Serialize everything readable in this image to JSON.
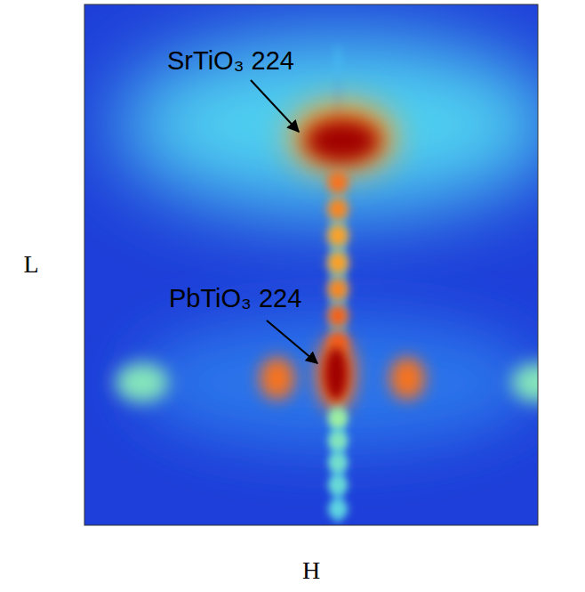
{
  "chart_data": {
    "type": "heatmap",
    "x_label": "H",
    "y_label": "L",
    "xlim": [
      0,
      100
    ],
    "ylim": [
      0,
      100
    ],
    "tick_labels": false,
    "zlim": [
      0,
      1
    ],
    "spots": [
      {
        "h": 55.9,
        "l": 76.9,
        "width": 98,
        "height": 34.2,
        "intensity": 0.35
      },
      {
        "h": 55.9,
        "l": 27.4,
        "width": 90,
        "height": 25.6,
        "intensity": 0.15
      },
      {
        "h": 55.9,
        "l": 46.2,
        "width": 3.5,
        "height": 92.3,
        "intensity": 0.3
      },
      {
        "h": 56.9,
        "l": 74.4,
        "width": 23.5,
        "height": 13.7,
        "intensity": 0.75
      },
      {
        "h": 56.9,
        "l": 73.8,
        "width": 16.7,
        "height": 8.5,
        "intensity": 1.0
      },
      {
        "h": 55.9,
        "l": 65.8,
        "width": 4.7,
        "height": 4.4,
        "intensity": 0.8
      },
      {
        "h": 55.9,
        "l": 60.7,
        "width": 4.7,
        "height": 4.4,
        "intensity": 0.78
      },
      {
        "h": 55.9,
        "l": 55.6,
        "width": 4.7,
        "height": 4.4,
        "intensity": 0.75
      },
      {
        "h": 55.9,
        "l": 50.4,
        "width": 4.7,
        "height": 4.4,
        "intensity": 0.75
      },
      {
        "h": 55.9,
        "l": 45.3,
        "width": 4.7,
        "height": 4.4,
        "intensity": 0.78
      },
      {
        "h": 55.9,
        "l": 40.2,
        "width": 4.7,
        "height": 4.4,
        "intensity": 0.82
      },
      {
        "h": 55.9,
        "l": 35.0,
        "width": 4.7,
        "height": 4.4,
        "intensity": 0.85
      },
      {
        "h": 55.5,
        "l": 29.1,
        "width": 8.8,
        "height": 14.5,
        "intensity": 0.8
      },
      {
        "h": 55.5,
        "l": 29.1,
        "width": 5.1,
        "height": 10.3,
        "intensity": 1.0
      },
      {
        "h": 42.5,
        "l": 28.2,
        "width": 7.8,
        "height": 8.2,
        "intensity": 0.8
      },
      {
        "h": 71.2,
        "l": 28.2,
        "width": 7.8,
        "height": 8.2,
        "intensity": 0.8
      },
      {
        "h": 12.7,
        "l": 27.4,
        "width": 11.8,
        "height": 7.7,
        "intensity": 0.45
      },
      {
        "h": 100,
        "l": 27.4,
        "width": 11.8,
        "height": 7.7,
        "intensity": 0.45
      },
      {
        "h": 55.9,
        "l": 20.5,
        "width": 4.3,
        "height": 3.8,
        "intensity": 0.5
      },
      {
        "h": 55.9,
        "l": 16.2,
        "width": 4.3,
        "height": 3.8,
        "intensity": 0.45
      },
      {
        "h": 55.9,
        "l": 12.0,
        "width": 4.3,
        "height": 3.8,
        "intensity": 0.42
      },
      {
        "h": 55.9,
        "l": 7.7,
        "width": 4.3,
        "height": 3.8,
        "intensity": 0.4
      },
      {
        "h": 55.9,
        "l": 3.1,
        "width": 4.3,
        "height": 3.8,
        "intensity": 0.38
      }
    ],
    "annotations": [
      {
        "text": "SrTiO₃ 224"
      },
      {
        "text": "PbTiO₃ 224"
      }
    ]
  }
}
